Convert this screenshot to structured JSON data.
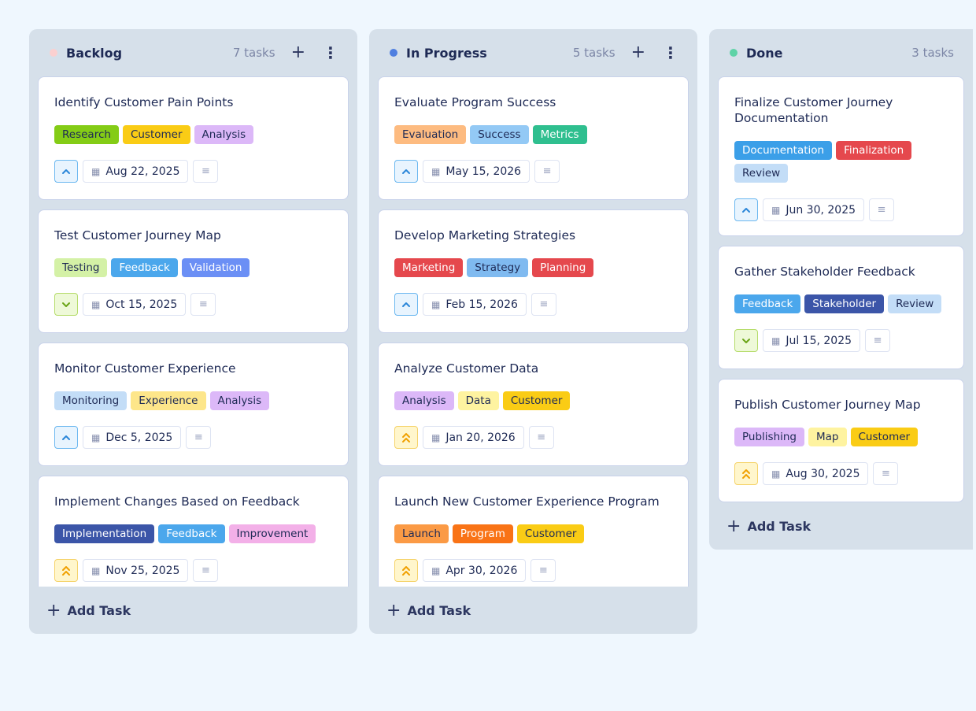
{
  "columns": [
    {
      "title": "Backlog",
      "count": "7 tasks",
      "dot_color": "#fbd0d0",
      "add_label": "Add Task",
      "cards": [
        {
          "title": "Identify Customer Pain Points",
          "priority": "up",
          "date": "Aug 22, 2025",
          "tags": [
            {
              "label": "Research",
              "bg": "#84cc16",
              "fg": "#1e2a55"
            },
            {
              "label": "Customer",
              "bg": "#facc15",
              "fg": "#1e2a55"
            },
            {
              "label": "Analysis",
              "bg": "#dcb8f8",
              "fg": "#1e2a55"
            }
          ]
        },
        {
          "title": "Test Customer Journey Map",
          "priority": "down",
          "date": "Oct 15, 2025",
          "tags": [
            {
              "label": "Testing",
              "bg": "#d4f1a6",
              "fg": "#1e2a55"
            },
            {
              "label": "Feedback",
              "bg": "#4ba7ec",
              "fg": "#ffffff"
            },
            {
              "label": "Validation",
              "bg": "#6b8ff5",
              "fg": "#ffffff"
            }
          ]
        },
        {
          "title": "Monitor Customer Experience",
          "priority": "up",
          "date": "Dec 5, 2025",
          "tags": [
            {
              "label": "Monitoring",
              "bg": "#c3ddf7",
              "fg": "#1e2a55"
            },
            {
              "label": "Experience",
              "bg": "#fde68a",
              "fg": "#1e2a55"
            },
            {
              "label": "Analysis",
              "bg": "#dcb8f8",
              "fg": "#1e2a55"
            }
          ]
        },
        {
          "title": "Implement Changes Based on Feedback",
          "priority": "high",
          "date": "Nov 25, 2025",
          "tags": [
            {
              "label": "Implementation",
              "bg": "#3b55a8",
              "fg": "#ffffff"
            },
            {
              "label": "Feedback",
              "bg": "#4ba7ec",
              "fg": "#ffffff"
            },
            {
              "label": "Improvement",
              "bg": "#f3b0e8",
              "fg": "#1e2a55"
            }
          ]
        }
      ]
    },
    {
      "title": "In Progress",
      "count": "5 tasks",
      "dot_color": "#4f7fe0",
      "add_label": "Add Task",
      "cards": [
        {
          "title": "Evaluate Program Success",
          "priority": "up",
          "date": "May 15, 2026",
          "tags": [
            {
              "label": "Evaluation",
              "bg": "#fdbb80",
              "fg": "#1e2a55"
            },
            {
              "label": "Success",
              "bg": "#93c9f5",
              "fg": "#1e2a55"
            },
            {
              "label": "Metrics",
              "bg": "#2fbf8f",
              "fg": "#ffffff"
            }
          ]
        },
        {
          "title": "Develop Marketing Strategies",
          "priority": "up",
          "date": "Feb 15, 2026",
          "tags": [
            {
              "label": "Marketing",
              "bg": "#e5484d",
              "fg": "#ffffff"
            },
            {
              "label": "Strategy",
              "bg": "#7fbaf0",
              "fg": "#1e2a55"
            },
            {
              "label": "Planning",
              "bg": "#e5484d",
              "fg": "#ffffff"
            }
          ]
        },
        {
          "title": "Analyze Customer Data",
          "priority": "high",
          "date": "Jan 20, 2026",
          "tags": [
            {
              "label": "Analysis",
              "bg": "#dcb8f8",
              "fg": "#1e2a55"
            },
            {
              "label": "Data",
              "bg": "#fef3a0",
              "fg": "#1e2a55"
            },
            {
              "label": "Customer",
              "bg": "#facc15",
              "fg": "#1e2a55"
            }
          ]
        },
        {
          "title": "Launch New Customer Experience Program",
          "priority": "high",
          "date": "Apr 30, 2026",
          "tags": [
            {
              "label": "Launch",
              "bg": "#fb9a45",
              "fg": "#1e2a55"
            },
            {
              "label": "Program",
              "bg": "#f97316",
              "fg": "#ffffff"
            },
            {
              "label": "Customer",
              "bg": "#facc15",
              "fg": "#1e2a55"
            }
          ]
        }
      ]
    },
    {
      "title": "Done",
      "count": "3 tasks",
      "dot_color": "#5fd3a7",
      "add_label": "Add Task",
      "cards": [
        {
          "title": "Finalize Customer Journey Documentation",
          "priority": "up",
          "date": "Jun 30, 2025",
          "tags": [
            {
              "label": "Documentation",
              "bg": "#3b9fe8",
              "fg": "#ffffff"
            },
            {
              "label": "Finalization",
              "bg": "#e5484d",
              "fg": "#ffffff"
            },
            {
              "label": "Review",
              "bg": "#c3ddf7",
              "fg": "#1e2a55"
            }
          ]
        },
        {
          "title": "Gather Stakeholder Feedback",
          "priority": "down",
          "date": "Jul 15, 2025",
          "tags": [
            {
              "label": "Feedback",
              "bg": "#4ba7ec",
              "fg": "#ffffff"
            },
            {
              "label": "Stakeholder",
              "bg": "#3b55a8",
              "fg": "#ffffff"
            },
            {
              "label": "Review",
              "bg": "#c3ddf7",
              "fg": "#1e2a55"
            }
          ]
        },
        {
          "title": "Publish Customer Journey Map",
          "priority": "high",
          "date": "Aug 30, 2025",
          "tags": [
            {
              "label": "Publishing",
              "bg": "#dcb8f8",
              "fg": "#1e2a55"
            },
            {
              "label": "Map",
              "bg": "#fef3a0",
              "fg": "#1e2a55"
            },
            {
              "label": "Customer",
              "bg": "#facc15",
              "fg": "#1e2a55"
            }
          ]
        }
      ]
    }
  ]
}
